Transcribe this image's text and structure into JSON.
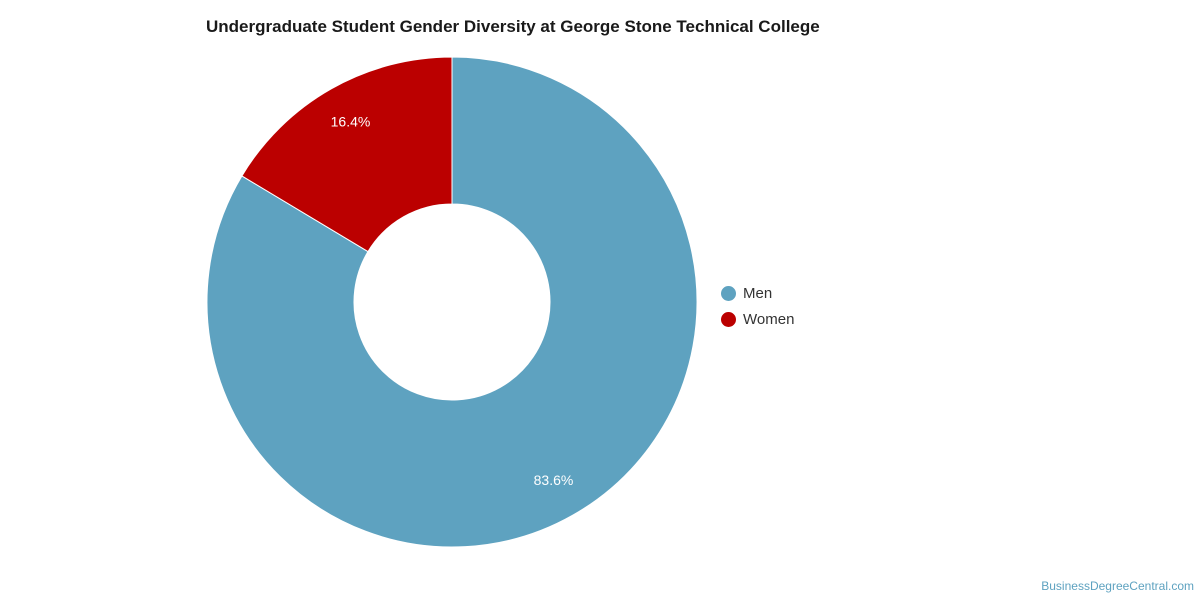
{
  "chart_data": {
    "type": "pie",
    "title": "Undergraduate Student Gender Diversity at George Stone Technical College",
    "categories": [
      "Men",
      "Women"
    ],
    "values": [
      83.6,
      16.4
    ],
    "data_labels": [
      "83.6%",
      "16.4%"
    ],
    "colors": [
      "#5ea2c0",
      "#bb0000"
    ],
    "donut": true,
    "legend_position": "right"
  },
  "legend": {
    "items": [
      {
        "label": "Men",
        "color": "#5ea2c0"
      },
      {
        "label": "Women",
        "color": "#bb0000"
      }
    ]
  },
  "watermark": "BusinessDegreeCentral.com"
}
